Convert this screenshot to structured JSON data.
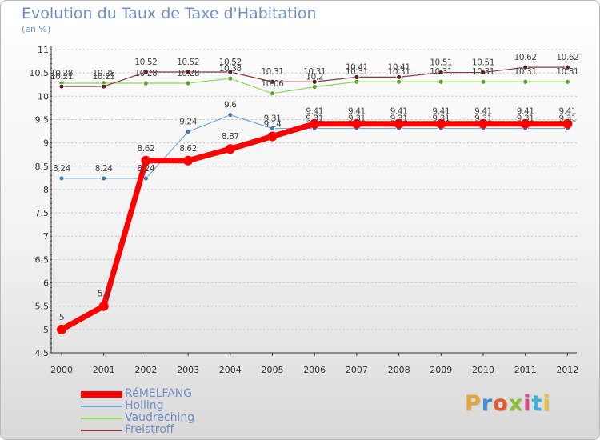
{
  "title": "Evolution du Taux de Taxe d'Habitation",
  "subtitle": "(en %)",
  "logo": {
    "text": "Proxiti",
    "colors": [
      "#e8a23a",
      "#3a8fd8",
      "#e05a2a",
      "#8abf3a",
      "#d84a8a",
      "#3ab0d8",
      "#e8c03a"
    ]
  },
  "chart_data": {
    "type": "line",
    "x": [
      "2000",
      "2001",
      "2002",
      "2003",
      "2004",
      "2005",
      "2006",
      "2007",
      "2008",
      "2009",
      "2010",
      "2011",
      "2012"
    ],
    "ylim": [
      4.5,
      11
    ],
    "yticks": [
      "4.5",
      "5",
      "5.5",
      "6",
      "6.5",
      "7",
      "7.5",
      "8",
      "8.5",
      "9",
      "9.5",
      "10",
      "10.5",
      "11"
    ],
    "grid": "horizontal dashed",
    "legend_position": "bottom-left",
    "series": [
      {
        "name": "RéMELFANG",
        "color": "#ff0000",
        "width": 7,
        "marker_r": 6,
        "values": [
          5,
          5.5,
          8.62,
          8.62,
          8.87,
          9.14,
          9.41,
          9.41,
          9.41,
          9.41,
          9.41,
          9.41,
          9.41
        ],
        "labels": [
          "5",
          "5.5",
          "8.62",
          "8.62",
          "8.87",
          "9.14",
          "9.41",
          "9.41",
          "9.41",
          "9.41",
          "9.41",
          "9.41",
          "9.41"
        ]
      },
      {
        "name": "Holling",
        "color": "#6fa8dc",
        "width": 1.2,
        "marker_r": 3,
        "values": [
          8.24,
          8.24,
          8.24,
          9.24,
          9.6,
          9.31,
          9.31,
          9.31,
          9.31,
          9.31,
          9.31,
          9.31,
          9.31
        ],
        "labels": [
          "8.24",
          "8.24",
          "8.24",
          "9.24",
          "9.6",
          "9.31",
          "9.31",
          "9.31",
          "9.31",
          "9.31",
          "9.31",
          "9.31",
          "9.31"
        ]
      },
      {
        "name": "Vaudreching",
        "color": "#8cd65a",
        "width": 1.2,
        "marker_r": 3,
        "values": [
          10.28,
          10.28,
          10.28,
          10.28,
          10.38,
          10.06,
          10.2,
          10.31,
          10.31,
          10.31,
          10.31,
          10.31,
          10.31
        ],
        "labels": [
          "10.28",
          "10.28",
          "10.28",
          "10.28",
          "10.38",
          "10.06",
          "10.2",
          "10.31",
          "10.31",
          "10.31",
          "10.31",
          "10.31",
          "10.31"
        ]
      },
      {
        "name": "Freistroff",
        "color": "#8b3a3a",
        "width": 1.2,
        "marker_r": 3,
        "values": [
          10.21,
          10.21,
          10.52,
          10.52,
          10.52,
          10.31,
          10.31,
          10.41,
          10.41,
          10.51,
          10.51,
          10.62,
          10.62
        ],
        "labels": [
          "10.21",
          "10.21",
          "10.52",
          "10.52",
          "10.52",
          "10.31",
          "10.31",
          "10.41",
          "10.41",
          "10.51",
          "10.51",
          "10.62",
          "10.62"
        ]
      }
    ]
  }
}
